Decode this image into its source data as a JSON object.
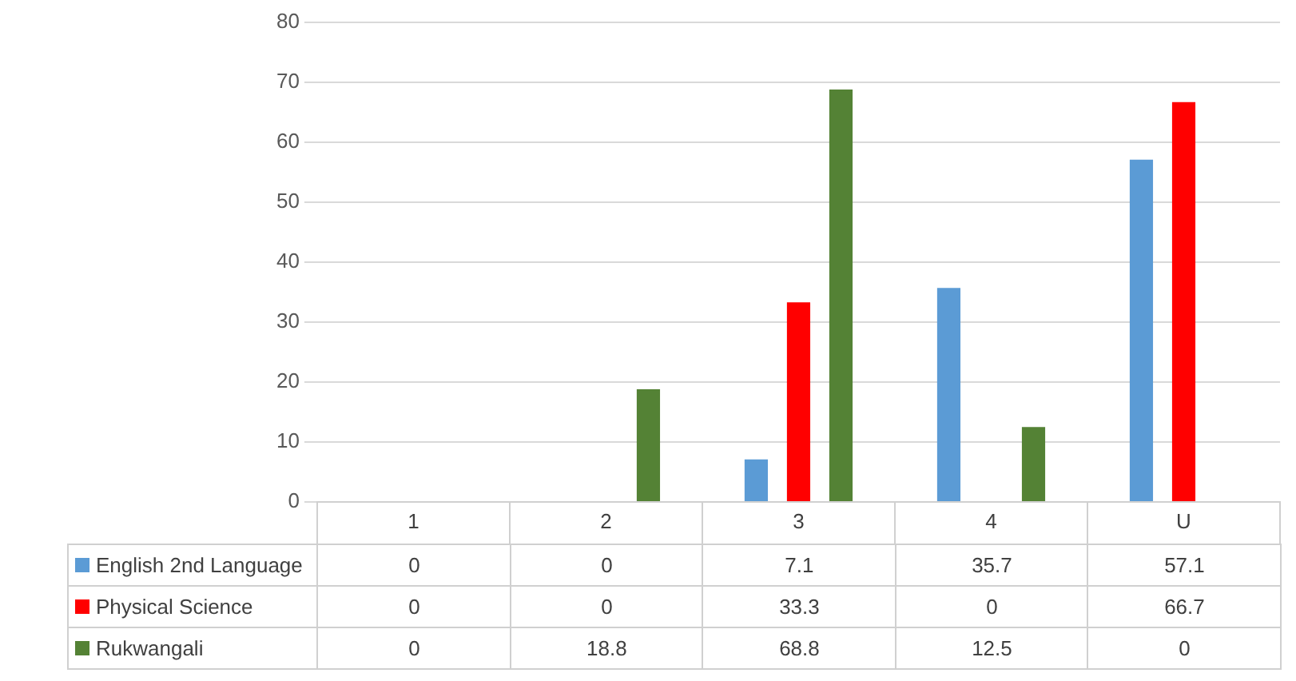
{
  "chart_data": {
    "type": "bar",
    "categories": [
      "1",
      "2",
      "3",
      "4",
      "U"
    ],
    "series": [
      {
        "name": "English 2nd Language",
        "color": "#5b9bd5",
        "values": [
          0,
          0,
          7.1,
          35.7,
          57.1
        ]
      },
      {
        "name": "Physical Science",
        "color": "#ff0000",
        "values": [
          0,
          0,
          33.3,
          0,
          66.7
        ]
      },
      {
        "name": "Rukwangali",
        "color": "#548235",
        "values": [
          0,
          18.8,
          68.8,
          12.5,
          0
        ]
      }
    ],
    "ylim": [
      0,
      80
    ],
    "yticks": [
      0,
      10,
      20,
      30,
      40,
      50,
      60,
      70,
      80
    ],
    "grid": "y",
    "legend": "bottom",
    "data_labels": true
  }
}
